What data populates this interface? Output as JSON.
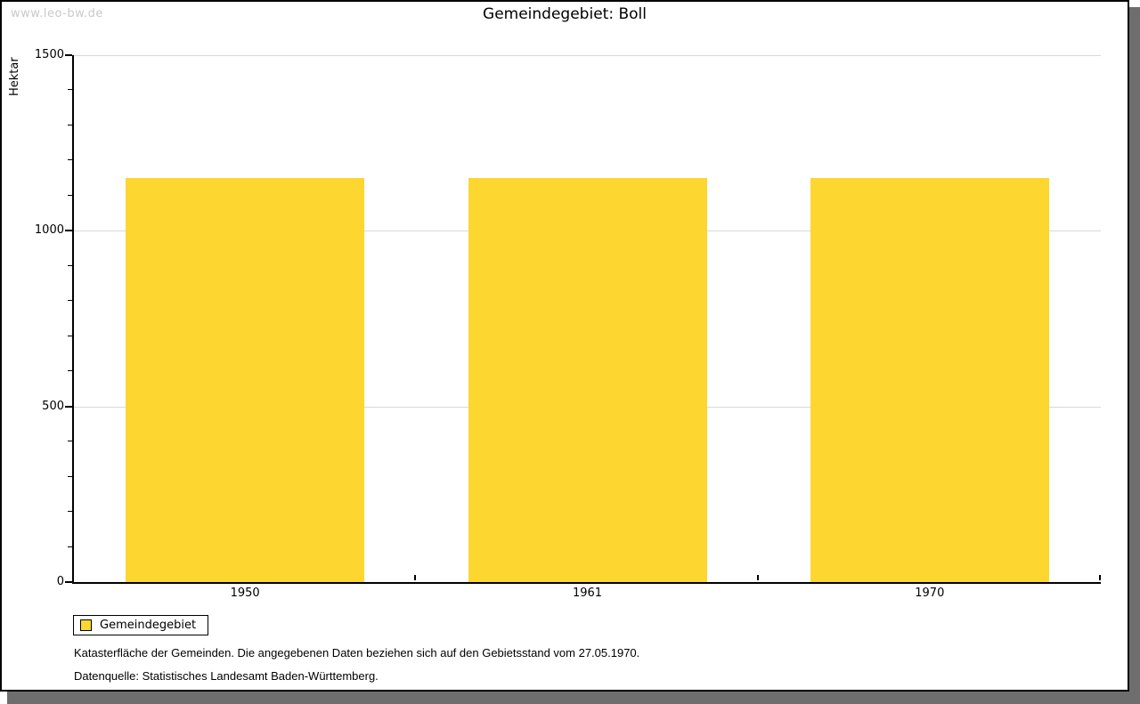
{
  "watermark": "www.leo-bw.de",
  "title": "Gemeindegebiet: Boll",
  "chart_data": {
    "type": "bar",
    "title": "Gemeindegebiet: Boll",
    "categories": [
      "1950",
      "1961",
      "1970"
    ],
    "series": [
      {
        "name": "Gemeindegebiet",
        "values": [
          1150,
          1150,
          1150
        ]
      }
    ],
    "xlabel": "",
    "ylabel": "Hektar",
    "ylim": [
      0,
      1500
    ],
    "yticks": [
      0,
      500,
      1000,
      1500
    ],
    "minor_tick_step": 100,
    "grid": "horizontal-major",
    "legend_position": "bottom-left",
    "bar_color": "#fdd630"
  },
  "legend": {
    "items": [
      {
        "label": "Gemeindegebiet",
        "color": "#fdd630"
      }
    ]
  },
  "footer": {
    "line1": "Katasterfläche der Gemeinden. Die angegebenen Daten beziehen sich auf den Gebietsstand vom 27.05.1970.",
    "line2": "Datenquelle: Statistisches Landesamt Baden-Württemberg."
  },
  "colors": {
    "bar": "#fdd630",
    "gridline": "#d9d9d9",
    "axis": "#000000",
    "watermark_text": "#c9c9c9",
    "window_shadow": "#6e6e6e",
    "frame_border": "#000000",
    "background": "#ffffff"
  }
}
